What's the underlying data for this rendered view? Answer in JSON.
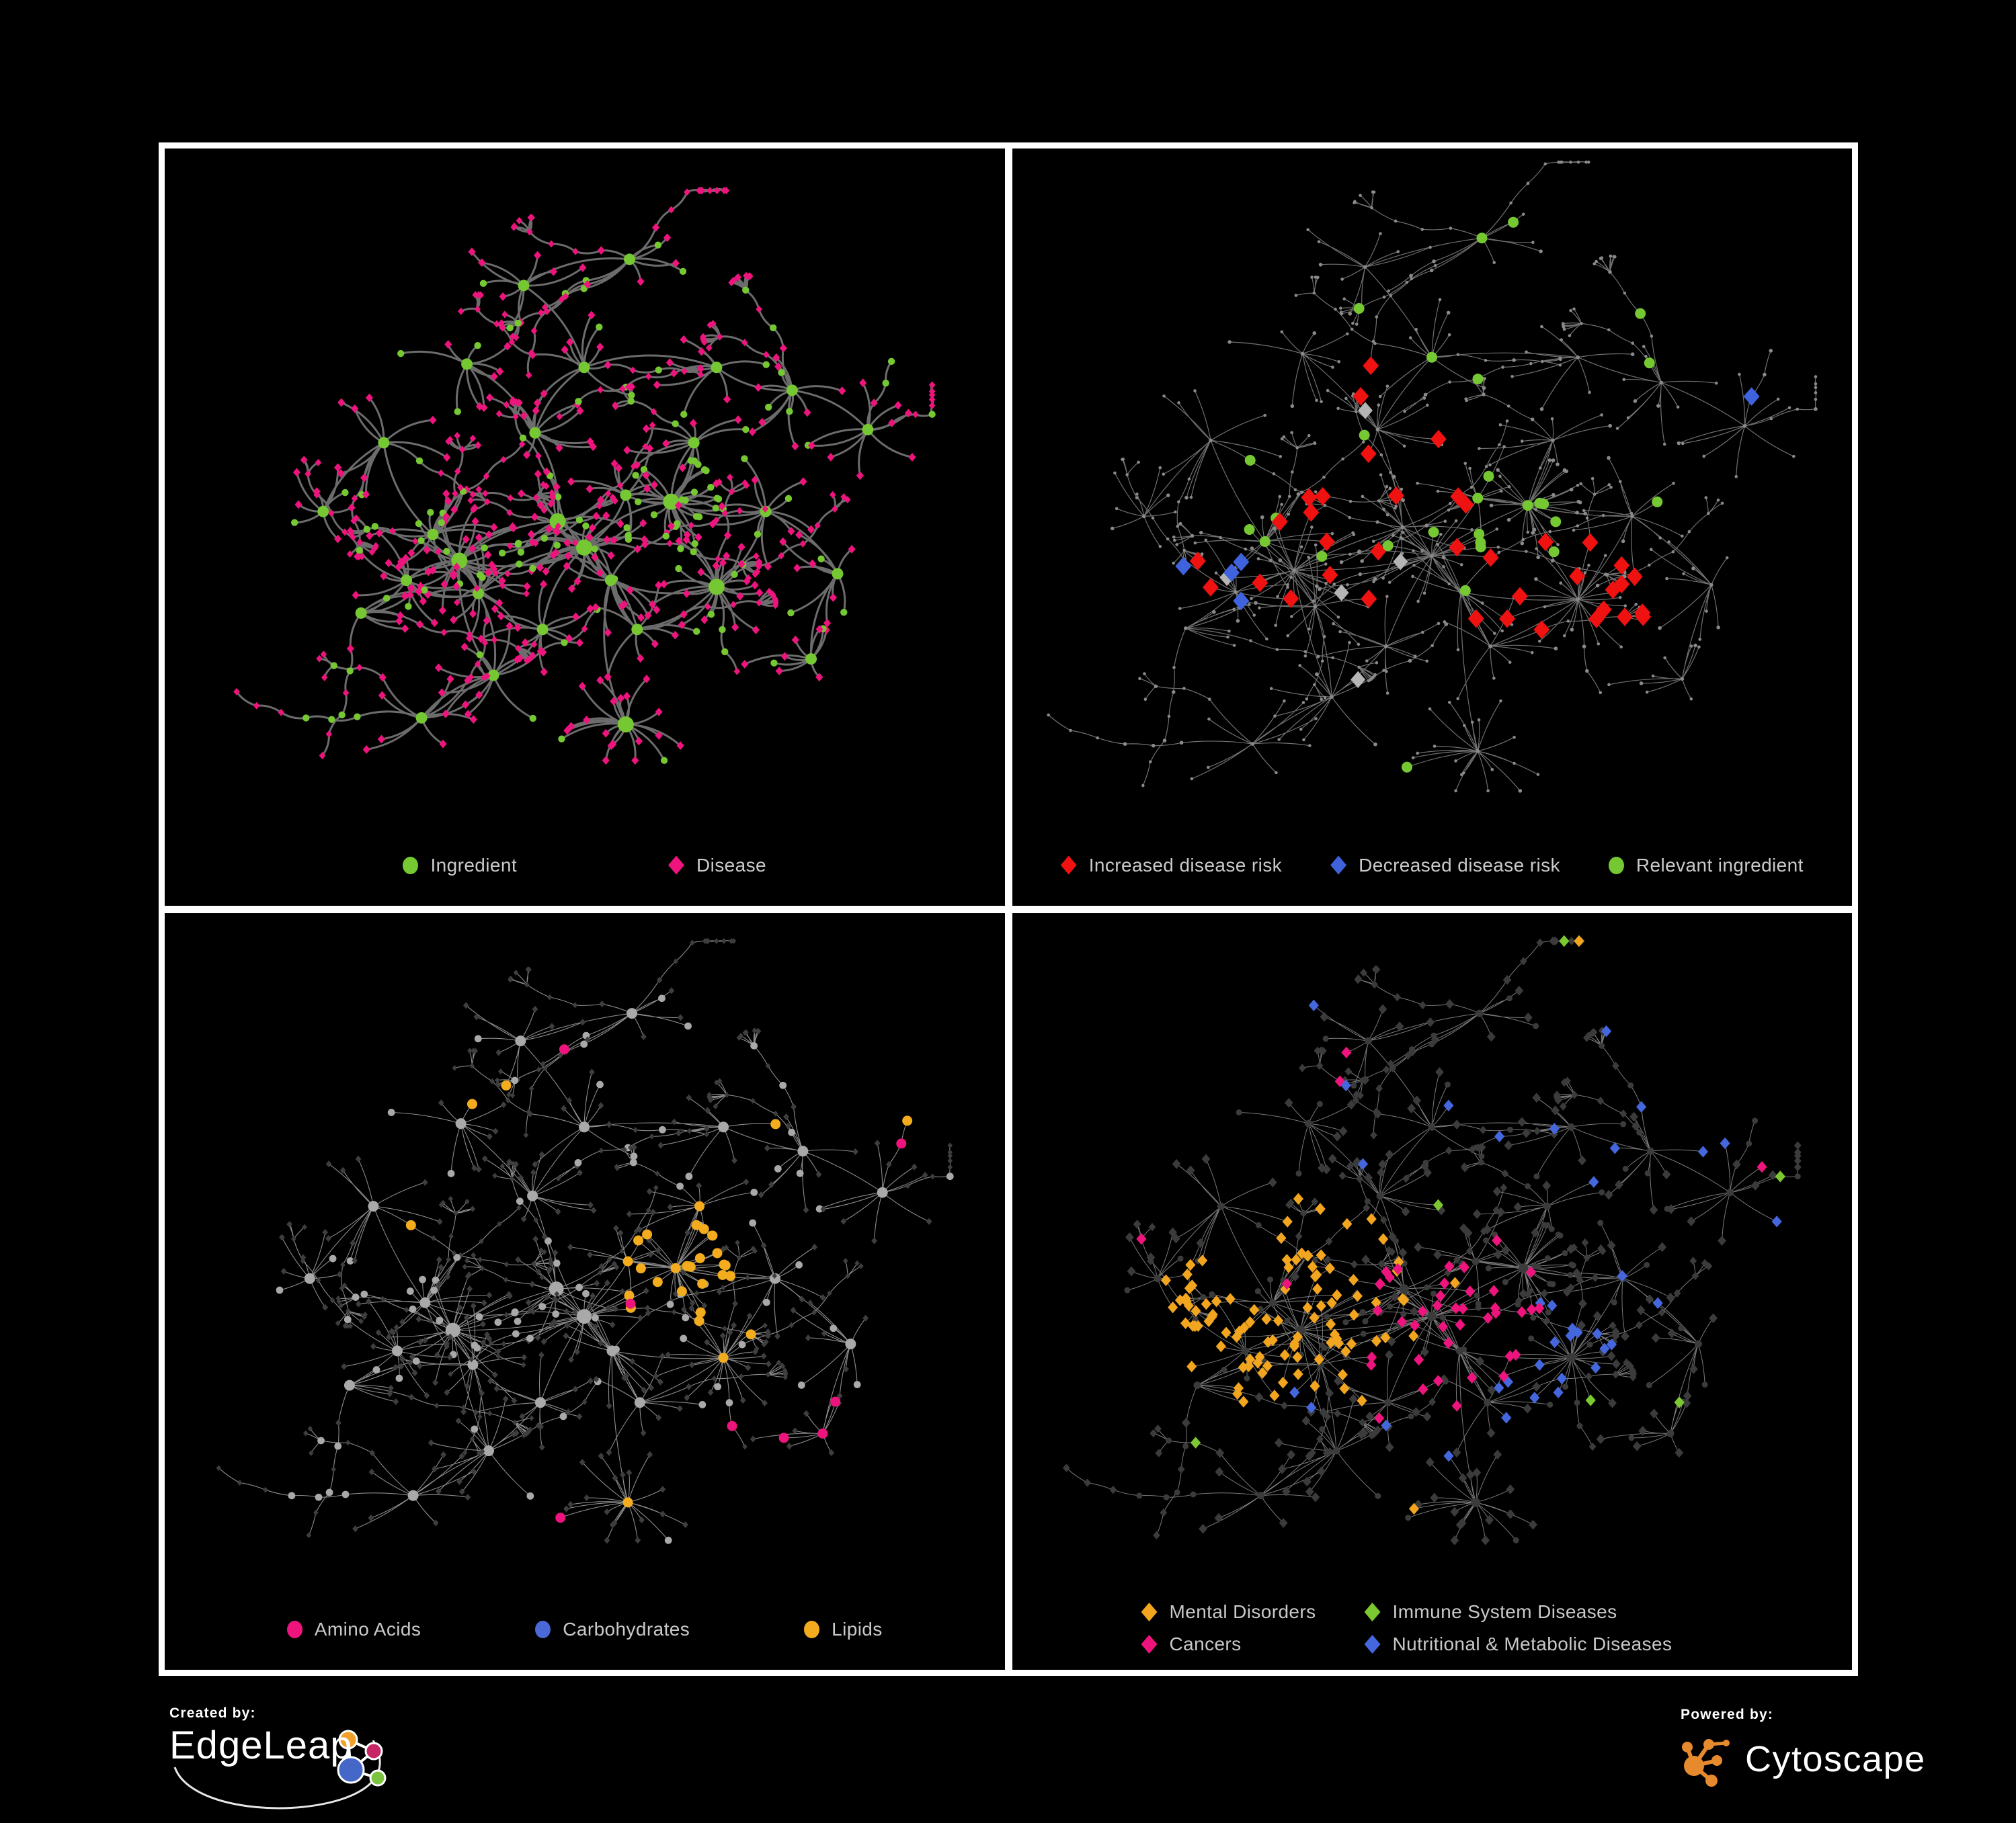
{
  "page": {
    "background": "#000000",
    "frame_color": "#ffffff"
  },
  "panels": [
    {
      "name": "ingredient-disease-network",
      "legend": [
        {
          "shape": "circle",
          "color": "#76C832",
          "label": "Ingredient"
        },
        {
          "shape": "diamond",
          "color": "#ED147D",
          "label": "Disease"
        }
      ]
    },
    {
      "name": "disease-risk-network",
      "legend": [
        {
          "shape": "diamond",
          "color": "#F01111",
          "label": "Increased disease risk"
        },
        {
          "shape": "diamond",
          "color": "#3E63DC",
          "label": "Decreased disease risk"
        },
        {
          "shape": "circle",
          "color": "#76C832",
          "label": "Relevant ingredient"
        }
      ]
    },
    {
      "name": "nutrient-class-network",
      "legend": [
        {
          "shape": "circle",
          "color": "#ED147D",
          "label": "Amino Acids"
        },
        {
          "shape": "circle",
          "color": "#4A68D8",
          "label": "Carbohydrates"
        },
        {
          "shape": "circle",
          "color": "#F2AC1E",
          "label": "Lipids"
        }
      ]
    },
    {
      "name": "disease-category-network",
      "legend": [
        {
          "shape": "diamond",
          "color": "#F2A51F",
          "label": "Mental Disorders"
        },
        {
          "shape": "diamond",
          "color": "#7CC832",
          "label": "Immune System Diseases"
        },
        {
          "shape": "diamond",
          "color": "#ED147D",
          "label": "Cancers"
        },
        {
          "shape": "diamond",
          "color": "#4467DD",
          "label": "Nutritional & Metabolic Diseases"
        }
      ]
    }
  ],
  "footer": {
    "created_by_label": "Created by:",
    "created_by_brand": "EdgeLeap",
    "powered_by_label": "Powered by:",
    "powered_by_brand": "Cytoscape",
    "edgeleap_glyph_colors": {
      "orange": "#F0A028",
      "magenta": "#C72565",
      "blue": "#4467C8",
      "green": "#7CC340"
    },
    "cytoscape_glyph_color": "#E78A2E"
  },
  "network": {
    "seed": 20240707,
    "hubs": [
      [
        0.335,
        0.595,
        24,
        1,
        0.25
      ],
      [
        0.3,
        0.555,
        16,
        0,
        0.2
      ],
      [
        0.36,
        0.645,
        14,
        0,
        0.2
      ],
      [
        0.265,
        0.625,
        12,
        0,
        0.15
      ],
      [
        0.5,
        0.575,
        22,
        1,
        0.3
      ],
      [
        0.535,
        0.625,
        14,
        0,
        0.2
      ],
      [
        0.465,
        0.535,
        16,
        1,
        0.3
      ],
      [
        0.555,
        0.495,
        12,
        0,
        0.25
      ],
      [
        0.615,
        0.505,
        26,
        1,
        0.8
      ],
      [
        0.435,
        0.4,
        11,
        0,
        0.2
      ],
      [
        0.5,
        0.3,
        9,
        0,
        0.25
      ],
      [
        0.42,
        0.175,
        9,
        0,
        0.3
      ],
      [
        0.56,
        0.135,
        10,
        0,
        0.25
      ],
      [
        0.345,
        0.295,
        9,
        0,
        0.2
      ],
      [
        0.235,
        0.415,
        10,
        0,
        0.2
      ],
      [
        0.155,
        0.52,
        8,
        0,
        0.2
      ],
      [
        0.675,
        0.3,
        8,
        0,
        0.25
      ],
      [
        0.775,
        0.335,
        12,
        0,
        0.2
      ],
      [
        0.875,
        0.395,
        10,
        0,
        0.2
      ],
      [
        0.74,
        0.52,
        10,
        0,
        0.2
      ],
      [
        0.675,
        0.635,
        24,
        1,
        0.1
      ],
      [
        0.555,
        0.845,
        20,
        1,
        0.1
      ],
      [
        0.38,
        0.77,
        12,
        0,
        0.15
      ],
      [
        0.285,
        0.835,
        10,
        0,
        0.2
      ],
      [
        0.205,
        0.675,
        9,
        0,
        0.2
      ],
      [
        0.445,
        0.7,
        11,
        0,
        0.2
      ],
      [
        0.835,
        0.615,
        10,
        0,
        0.2
      ],
      [
        0.8,
        0.745,
        9,
        0,
        0.25
      ],
      [
        0.645,
        0.415,
        10,
        0,
        0.25
      ],
      [
        0.57,
        0.7,
        9,
        0,
        0.2
      ]
    ],
    "cross_links": [
      [
        0,
        4
      ],
      [
        0,
        6
      ],
      [
        4,
        6
      ],
      [
        4,
        8
      ],
      [
        6,
        9
      ],
      [
        0,
        2
      ],
      [
        4,
        25
      ],
      [
        20,
        5
      ],
      [
        8,
        28
      ],
      [
        4,
        29
      ],
      [
        0,
        22
      ],
      [
        20,
        29
      ]
    ],
    "chain_prob": 0.13,
    "panel_styles": [
      {
        "kind": "typed",
        "zoom": 0.97,
        "edge": "#6C6C6C",
        "edgeW": 3,
        "curv": 0.18,
        "ingredient": {
          "color": "#76C832",
          "rBig": 12,
          "rHub": 8.5,
          "rLeaf": 5.2
        },
        "disease": {
          "color": "#ED147D",
          "s": 5.6,
          "sSmall": 4.8
        },
        "highlights": []
      },
      {
        "kind": "dim",
        "zoom": 1.07,
        "edge": "#707070",
        "edgeW": 1.2,
        "curv": 0.06,
        "dimColor": "#8A8A8A",
        "dimRi": 2.8,
        "dimRd": 2.3,
        "highlights": [
          {
            "type": "d",
            "shape": "diamond",
            "color": "#F01111",
            "size": 12,
            "zones": [
              [
                0.47,
                0.55,
                0.17,
                0.1
              ],
              [
                0.31,
                0.57,
                0.1,
                0.1
              ],
              [
                0.68,
                0.63,
                0.09,
                0.22
              ],
              [
                0.73,
                0.8,
                0.09,
                0.3
              ],
              [
                0.4,
                0.35,
                0.08,
                0.12
              ]
            ]
          },
          {
            "type": "d",
            "shape": "diamond",
            "color": "#3E63DC",
            "size": 12,
            "zones": [
              [
                0.27,
                0.58,
                0.08,
                0.14
              ],
              [
                0.87,
                0.39,
                0.05,
                0.55
              ]
            ]
          },
          {
            "type": "d",
            "shape": "diamond",
            "color": "#B5B5B5",
            "size": 11,
            "zones": [
              [
                0.45,
                0.58,
                0.22,
                0.035
              ]
            ]
          },
          {
            "type": "i",
            "shape": "circle",
            "color": "#76C832",
            "size": 8,
            "zones": [
              [
                0.45,
                0.55,
                0.2,
                0.3
              ],
              [
                0.62,
                0.5,
                0.1,
                0.15
              ],
              [
                0.5,
                0.5,
                0.6,
                0.04
              ]
            ]
          }
        ]
      },
      {
        "kind": "typed",
        "zoom": 1.02,
        "edge": "#8C8C8C",
        "edgeW": 1.1,
        "curv": 0.06,
        "ingredient": {
          "color": "#A9A9A9",
          "rBig": 11,
          "rHub": 8,
          "rLeaf": 5.4
        },
        "disease": {
          "color": "#3E3E3E",
          "s": 4.4,
          "sSmall": 3.8
        },
        "highlights": [
          {
            "type": "i",
            "shape": "circle",
            "color": "#F2AC1E",
            "size": 7.5,
            "zones": [
              [
                0.62,
                0.5,
                0.1,
                0.8
              ],
              [
                0.45,
                0.28,
                0.14,
                0.25
              ],
              [
                0.68,
                0.64,
                0.05,
                0.55
              ],
              [
                0.5,
                0.5,
                0.65,
                0.05
              ]
            ]
          },
          {
            "type": "i",
            "shape": "circle",
            "color": "#4A68D8",
            "size": 7.5,
            "zones": [
              [
                0.62,
                0.5,
                0.08,
                0.3
              ],
              [
                0.5,
                0.5,
                0.65,
                0.02
              ]
            ]
          },
          {
            "type": "i",
            "shape": "circle",
            "color": "#ED147D",
            "size": 7.5,
            "zones": [
              [
                0.73,
                0.74,
                0.1,
                0.4
              ],
              [
                0.5,
                0.5,
                0.65,
                0.045
              ]
            ]
          }
        ]
      },
      {
        "kind": "typed",
        "zoom": 1.02,
        "edge": "#7A7A7A",
        "edgeW": 1,
        "curv": 0.06,
        "ingredient": {
          "color": "#3B3B3B",
          "rBig": 7,
          "rHub": 5.5,
          "rLeaf": 4.5,
          "forceSmall": true
        },
        "disease": {
          "color": "#3B3B3B",
          "s": 6.4,
          "sSmall": 5.4
        },
        "highlights": [
          {
            "type": "d",
            "shape": "diamond",
            "color": "#F2A51F",
            "size": 7.6,
            "zones": [
              [
                0.28,
                0.56,
                0.13,
                0.85
              ],
              [
                0.3,
                0.56,
                0.2,
                0.25
              ],
              [
                0.5,
                0.5,
                0.7,
                0.01
              ]
            ]
          },
          {
            "type": "d",
            "shape": "diamond",
            "color": "#ED147D",
            "size": 7.6,
            "zones": [
              [
                0.5,
                0.6,
                0.11,
                0.55
              ],
              [
                0.57,
                0.52,
                0.08,
                0.3
              ],
              [
                0.88,
                0.3,
                0.07,
                0.45
              ],
              [
                0.5,
                0.5,
                0.7,
                0.015
              ]
            ]
          },
          {
            "type": "d",
            "shape": "diamond",
            "color": "#4467DD",
            "size": 7.6,
            "zones": [
              [
                0.64,
                0.63,
                0.08,
                0.7
              ],
              [
                0.76,
                0.3,
                0.12,
                0.22
              ],
              [
                0.92,
                0.45,
                0.07,
                0.3
              ],
              [
                0.5,
                0.25,
                0.5,
                0.045
              ],
              [
                0.5,
                0.8,
                0.4,
                0.03
              ]
            ]
          },
          {
            "type": "d",
            "shape": "diamond",
            "color": "#7CC832",
            "size": 7.6,
            "zones": [
              [
                0.5,
                0.5,
                0.7,
                0.014
              ]
            ]
          }
        ]
      }
    ]
  }
}
